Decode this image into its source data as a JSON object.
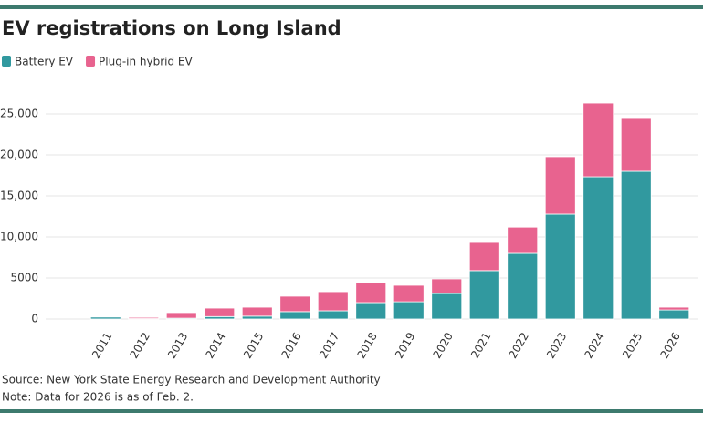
{
  "chart_data": {
    "type": "stacked-bar",
    "title": "EV registrations on Long Island",
    "categories": [
      "2011",
      "2012",
      "2013",
      "2014",
      "2015",
      "2016",
      "2017",
      "2018",
      "2019",
      "2020",
      "2021",
      "2022",
      "2023",
      "2024",
      "2025",
      "2026"
    ],
    "series": [
      {
        "name": "Battery EV",
        "color": "#31999f",
        "values": [
          250,
          50,
          100,
          300,
          350,
          900,
          1000,
          2000,
          2100,
          3100,
          5900,
          8000,
          12780,
          17330,
          18000,
          1100
        ]
      },
      {
        "name": "Plug-in hybrid EV",
        "color": "#e8638f",
        "values": [
          50,
          150,
          680,
          1030,
          1090,
          1880,
          2330,
          2440,
          2010,
          1790,
          3430,
          3200,
          7000,
          9000,
          6440,
          340
        ]
      }
    ],
    "ylim": [
      0,
      28000
    ],
    "yticks": [
      0,
      5000,
      {
        "value": 10000,
        "label": "10,000"
      },
      {
        "value": 15000,
        "label": "15,000"
      },
      {
        "value": 20000,
        "label": "20,000"
      },
      {
        "value": 25000,
        "label": "25,000"
      }
    ],
    "grid": true,
    "notes": [
      "Source: New York State Energy Research and Development Authority",
      "Note: Data for 2026 is as of Feb. 2."
    ]
  }
}
